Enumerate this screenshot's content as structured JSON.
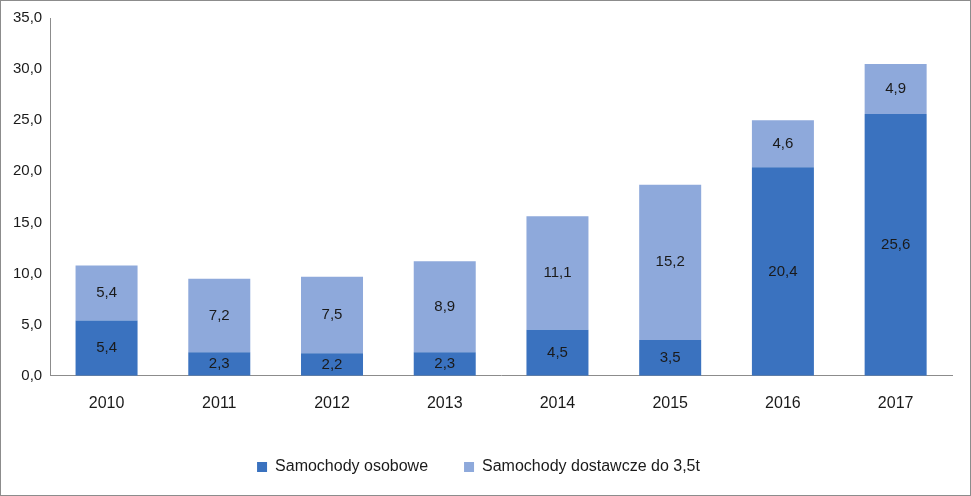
{
  "chart_data": {
    "type": "bar",
    "categories": [
      "2010",
      "2011",
      "2012",
      "2013",
      "2014",
      "2015",
      "2016",
      "2017"
    ],
    "series": [
      {
        "name": "Samochody osobowe",
        "color": "#3a72bf",
        "values": [
          5.4,
          2.3,
          2.2,
          2.3,
          4.5,
          3.5,
          20.4,
          25.6
        ],
        "value_labels": [
          "5,4",
          "2,3",
          "2,2",
          "2,3",
          "4,5",
          "3,5",
          "20,4",
          "25,6"
        ]
      },
      {
        "name": "Samochody dostawcze do 3,5t",
        "color": "#8ea9db",
        "values": [
          5.4,
          7.2,
          7.5,
          8.9,
          11.1,
          15.2,
          4.6,
          4.9
        ],
        "value_labels": [
          "5,4",
          "7,2",
          "7,5",
          "8,9",
          "11,1",
          "15,2",
          "4,6",
          "4,9"
        ]
      }
    ],
    "stacked": true,
    "data_labels": true,
    "grid": false,
    "legend": "bottom",
    "ylim": [
      0,
      35
    ],
    "yticks": [
      {
        "value": 0,
        "label": "0,0"
      },
      {
        "value": 5,
        "label": "5,0"
      },
      {
        "value": 10,
        "label": "10,0"
      },
      {
        "value": 15,
        "label": "15,0"
      },
      {
        "value": 20,
        "label": "20,0"
      },
      {
        "value": 25,
        "label": "25,0"
      },
      {
        "value": 30,
        "label": "30,0"
      },
      {
        "value": 35,
        "label": "35,0"
      }
    ]
  }
}
